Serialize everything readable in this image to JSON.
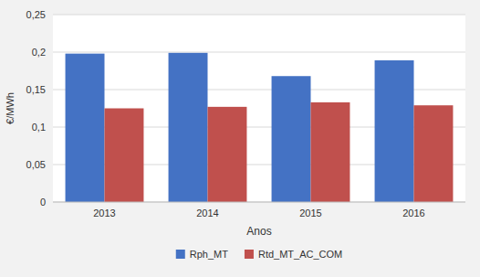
{
  "chart_data": {
    "type": "bar",
    "categories": [
      "2013",
      "2014",
      "2015",
      "2016"
    ],
    "series": [
      {
        "name": "Rph_MT",
        "color": "#4472C4",
        "values": [
          0.198,
          0.199,
          0.168,
          0.189
        ]
      },
      {
        "name": "Rtd_MT_AC_COM",
        "color": "#C0504D",
        "values": [
          0.125,
          0.127,
          0.133,
          0.129
        ]
      }
    ],
    "xlabel": "Anos",
    "ylabel": "€/MWh",
    "ylim": [
      0,
      0.25
    ],
    "yticks": [
      0,
      {
        "value": 0.05,
        "label": "0,05"
      },
      {
        "value": 0.1,
        "label": "0,1"
      },
      {
        "value": 0.15,
        "label": "0,15"
      },
      {
        "value": 0.2,
        "label": "0,2"
      },
      {
        "value": 0.25,
        "label": "0,25"
      }
    ],
    "grid": true,
    "legend": "bottom"
  }
}
